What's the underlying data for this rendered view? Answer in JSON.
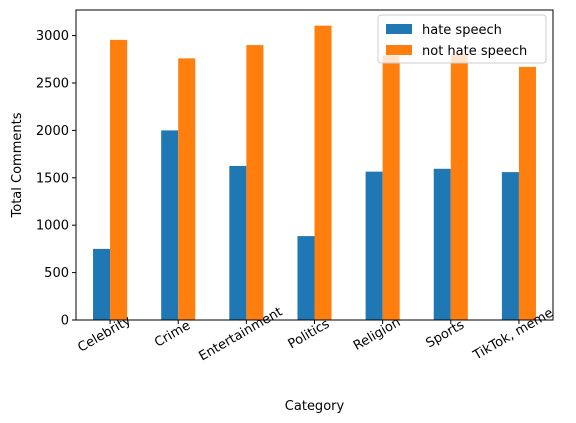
{
  "chart_data": {
    "type": "bar",
    "title": "",
    "xlabel": "Category",
    "ylabel": "Total Comments",
    "categories": [
      "Celebrity",
      "Crime",
      "Entertainment",
      "Politics",
      "Religion",
      "Sports",
      "TikTok, meme"
    ],
    "series": [
      {
        "name": "hate speech",
        "color": "#1f77b4",
        "values": [
          750,
          2000,
          1625,
          885,
          1565,
          1595,
          1560
        ]
      },
      {
        "name": "not hate speech",
        "color": "#ff7f0e",
        "values": [
          2955,
          2760,
          2900,
          3105,
          2790,
          2800,
          2670
        ]
      }
    ],
    "ylim": [
      0,
      3270
    ],
    "yticks": [
      0,
      500,
      1000,
      1500,
      2000,
      2500,
      3000
    ],
    "grid": false,
    "legend_position": "top-right",
    "xtick_rotation_deg": 30
  }
}
